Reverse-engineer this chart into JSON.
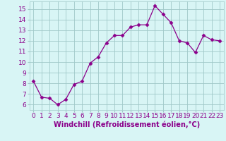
{
  "x": [
    0,
    1,
    2,
    3,
    4,
    5,
    6,
    7,
    8,
    9,
    10,
    11,
    12,
    13,
    14,
    15,
    16,
    17,
    18,
    19,
    20,
    21,
    22,
    23
  ],
  "y": [
    8.2,
    6.7,
    6.6,
    6.0,
    6.5,
    7.9,
    8.2,
    9.9,
    10.5,
    11.8,
    12.5,
    12.5,
    13.3,
    13.5,
    13.5,
    15.3,
    14.5,
    13.7,
    12.0,
    11.8,
    10.9,
    12.5,
    12.1,
    12.0
  ],
  "line_color": "#8b008b",
  "marker": "D",
  "marker_size": 2.5,
  "bg_color": "#d8f5f5",
  "grid_color": "#a0c8c8",
  "xlabel": "Windchill (Refroidissement éolien,°C)",
  "xlim": [
    -0.5,
    23.5
  ],
  "ylim": [
    5.5,
    15.7
  ],
  "xticks": [
    0,
    1,
    2,
    3,
    4,
    5,
    6,
    7,
    8,
    9,
    10,
    11,
    12,
    13,
    14,
    15,
    16,
    17,
    18,
    19,
    20,
    21,
    22,
    23
  ],
  "yticks": [
    6,
    7,
    8,
    9,
    10,
    11,
    12,
    13,
    14,
    15
  ],
  "tick_fontsize": 6.5,
  "xlabel_fontsize": 7
}
